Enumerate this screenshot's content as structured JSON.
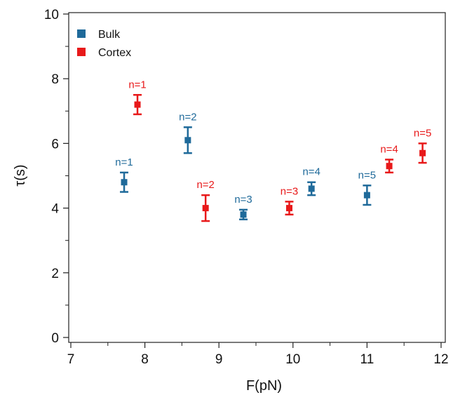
{
  "chart_data": {
    "type": "scatter",
    "xlabel": "F(pN)",
    "ylabel": "τ(s)",
    "xlim": [
      7,
      12
    ],
    "ylim": [
      0,
      10
    ],
    "xticks": [
      "7",
      "8",
      "9",
      "10",
      "11",
      "12"
    ],
    "yticks": [
      "0",
      "2",
      "4",
      "6",
      "8",
      "10"
    ],
    "grid": false,
    "legend": "top-left",
    "series": [
      {
        "name": "Bulk",
        "color": "#1f6a9a",
        "points": [
          {
            "x": 7.72,
            "y": 4.8,
            "err": 0.3,
            "label": "n=1"
          },
          {
            "x": 8.58,
            "y": 6.1,
            "err": 0.4,
            "label": "n=2"
          },
          {
            "x": 9.33,
            "y": 3.8,
            "err": 0.15,
            "label": "n=3"
          },
          {
            "x": 10.25,
            "y": 4.6,
            "err": 0.2,
            "label": "n=4"
          },
          {
            "x": 11.0,
            "y": 4.4,
            "err": 0.3,
            "label": "n=5"
          }
        ]
      },
      {
        "name": "Cortex",
        "color": "#e8191a",
        "points": [
          {
            "x": 7.9,
            "y": 7.2,
            "err": 0.3,
            "label": "n=1"
          },
          {
            "x": 8.82,
            "y": 4.0,
            "err": 0.4,
            "label": "n=2"
          },
          {
            "x": 9.95,
            "y": 4.0,
            "err": 0.2,
            "label": "n=3"
          },
          {
            "x": 11.3,
            "y": 5.3,
            "err": 0.2,
            "label": "n=4"
          },
          {
            "x": 11.75,
            "y": 5.7,
            "err": 0.3,
            "label": "n=5"
          }
        ]
      }
    ]
  }
}
